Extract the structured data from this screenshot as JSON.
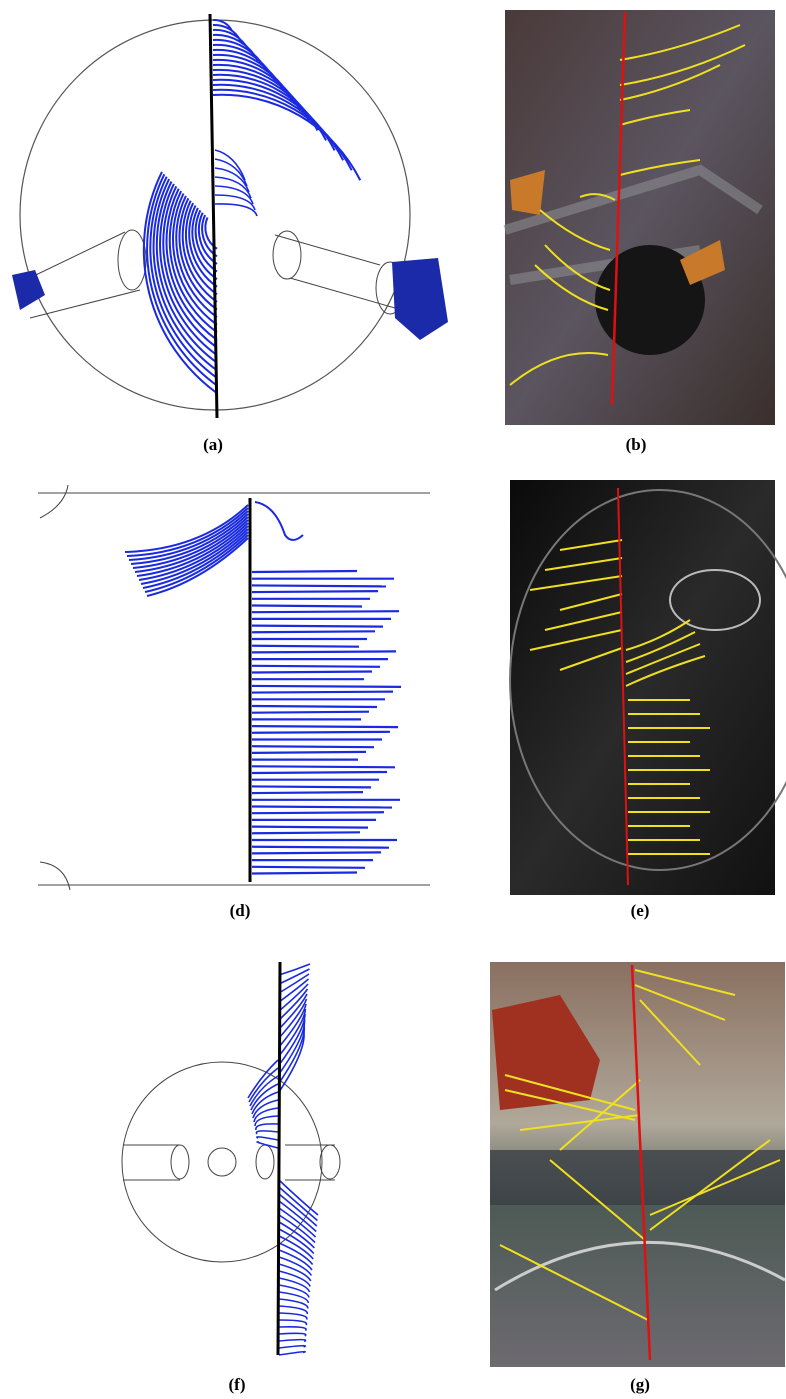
{
  "panels": [
    {
      "label": "(a)"
    },
    {
      "label": "(b)"
    },
    {
      "label": "(d)"
    },
    {
      "label": "(e)"
    },
    {
      "label": "(f)"
    },
    {
      "label": "(g)"
    }
  ]
}
